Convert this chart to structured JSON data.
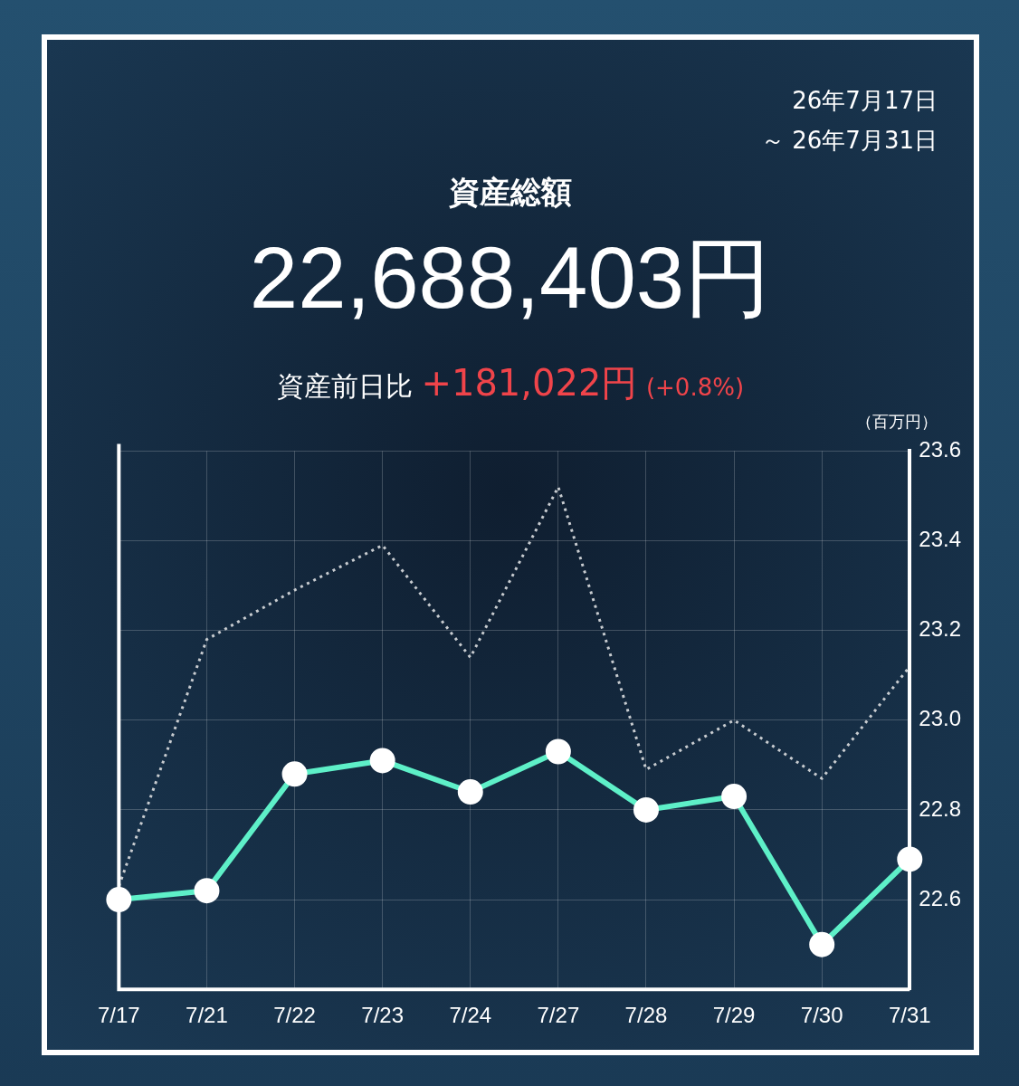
{
  "chart_data": {
    "type": "line",
    "title": "資産総額",
    "subtitle": "22,688,403円",
    "ylabel": "（百万円）",
    "annotations": [
      "26年7月17日",
      "～ 26年7月31日",
      "資産前日比",
      "+181,022円",
      "(+0.8%)"
    ],
    "categories": [
      "7/17",
      "7/21",
      "7/22",
      "7/23",
      "7/24",
      "7/27",
      "7/28",
      "7/29",
      "7/30",
      "7/31"
    ],
    "series": [
      {
        "color": "#c8ccd0",
        "line_style": "dotted",
        "marker": "none",
        "values": [
          22.63,
          23.18,
          23.29,
          23.39,
          23.14,
          23.52,
          22.89,
          23.0,
          22.87,
          23.12
        ]
      },
      {
        "color": "#5ef0c8",
        "line_style": "solid",
        "marker": "circle",
        "values": [
          22.6,
          22.62,
          22.88,
          22.91,
          22.84,
          22.93,
          22.8,
          22.83,
          22.5,
          22.69
        ]
      }
    ],
    "ylim": [
      22.4,
      23.6
    ],
    "yticks": [
      {
        "value": 22.6,
        "label": "22.6"
      },
      {
        "value": 22.8,
        "label": "22.8"
      },
      {
        "value": 23,
        "label": "23.0"
      },
      {
        "value": 23.2,
        "label": "23.2"
      },
      {
        "value": 23.4,
        "label": "23.4"
      },
      {
        "value": 23.6,
        "label": "23.6"
      }
    ],
    "grid": true,
    "legend": false
  }
}
